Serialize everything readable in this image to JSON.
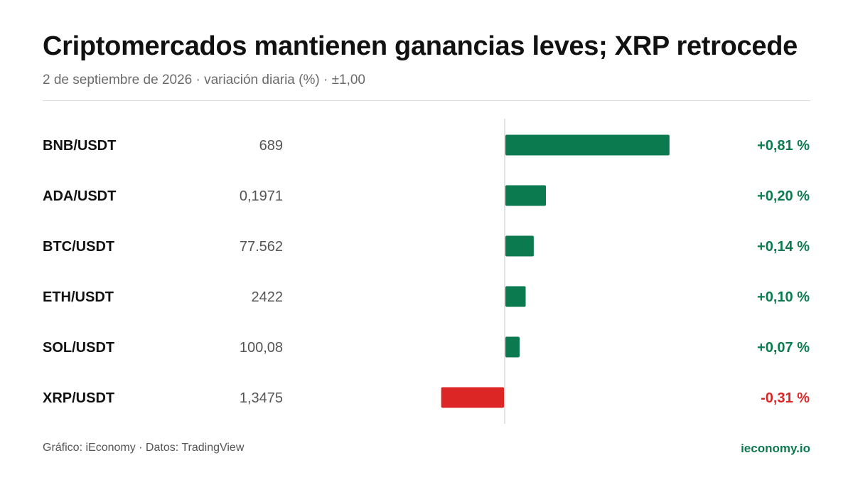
{
  "header": {
    "title": "Criptomercados mantienen ganancias leves; XRP retrocede",
    "subtitle": "2 de septiembre de 2026 · variación diaria (%) · ±1,00"
  },
  "footer": {
    "credit": "Gráfico: iEconomy · Datos: TradingView",
    "brand": "ieconomy.io"
  },
  "colors": {
    "positive": "#0b7a4f",
    "negative": "#dc2626",
    "axis": "#d9d9d9",
    "label": "#111111",
    "price": "#555555"
  },
  "chart_data": {
    "type": "bar",
    "orientation": "horizontal",
    "categories": [
      "BNB/USDT",
      "ADA/USDT",
      "BTC/USDT",
      "ETH/USDT",
      "SOL/USDT",
      "XRP/USDT"
    ],
    "prices": [
      "689",
      "0,1971",
      "77.562",
      "2422",
      "100,08",
      "1,3475"
    ],
    "values": [
      0.81,
      0.2,
      0.14,
      0.1,
      0.07,
      -0.31
    ],
    "value_labels": [
      "+0,81 %",
      "+0,20 %",
      "+0,14 %",
      "+0,10 %",
      "+0,07 %",
      "-0,31 %"
    ],
    "xlim": [
      -1.0,
      1.0
    ],
    "grid": false,
    "legend": "none"
  }
}
